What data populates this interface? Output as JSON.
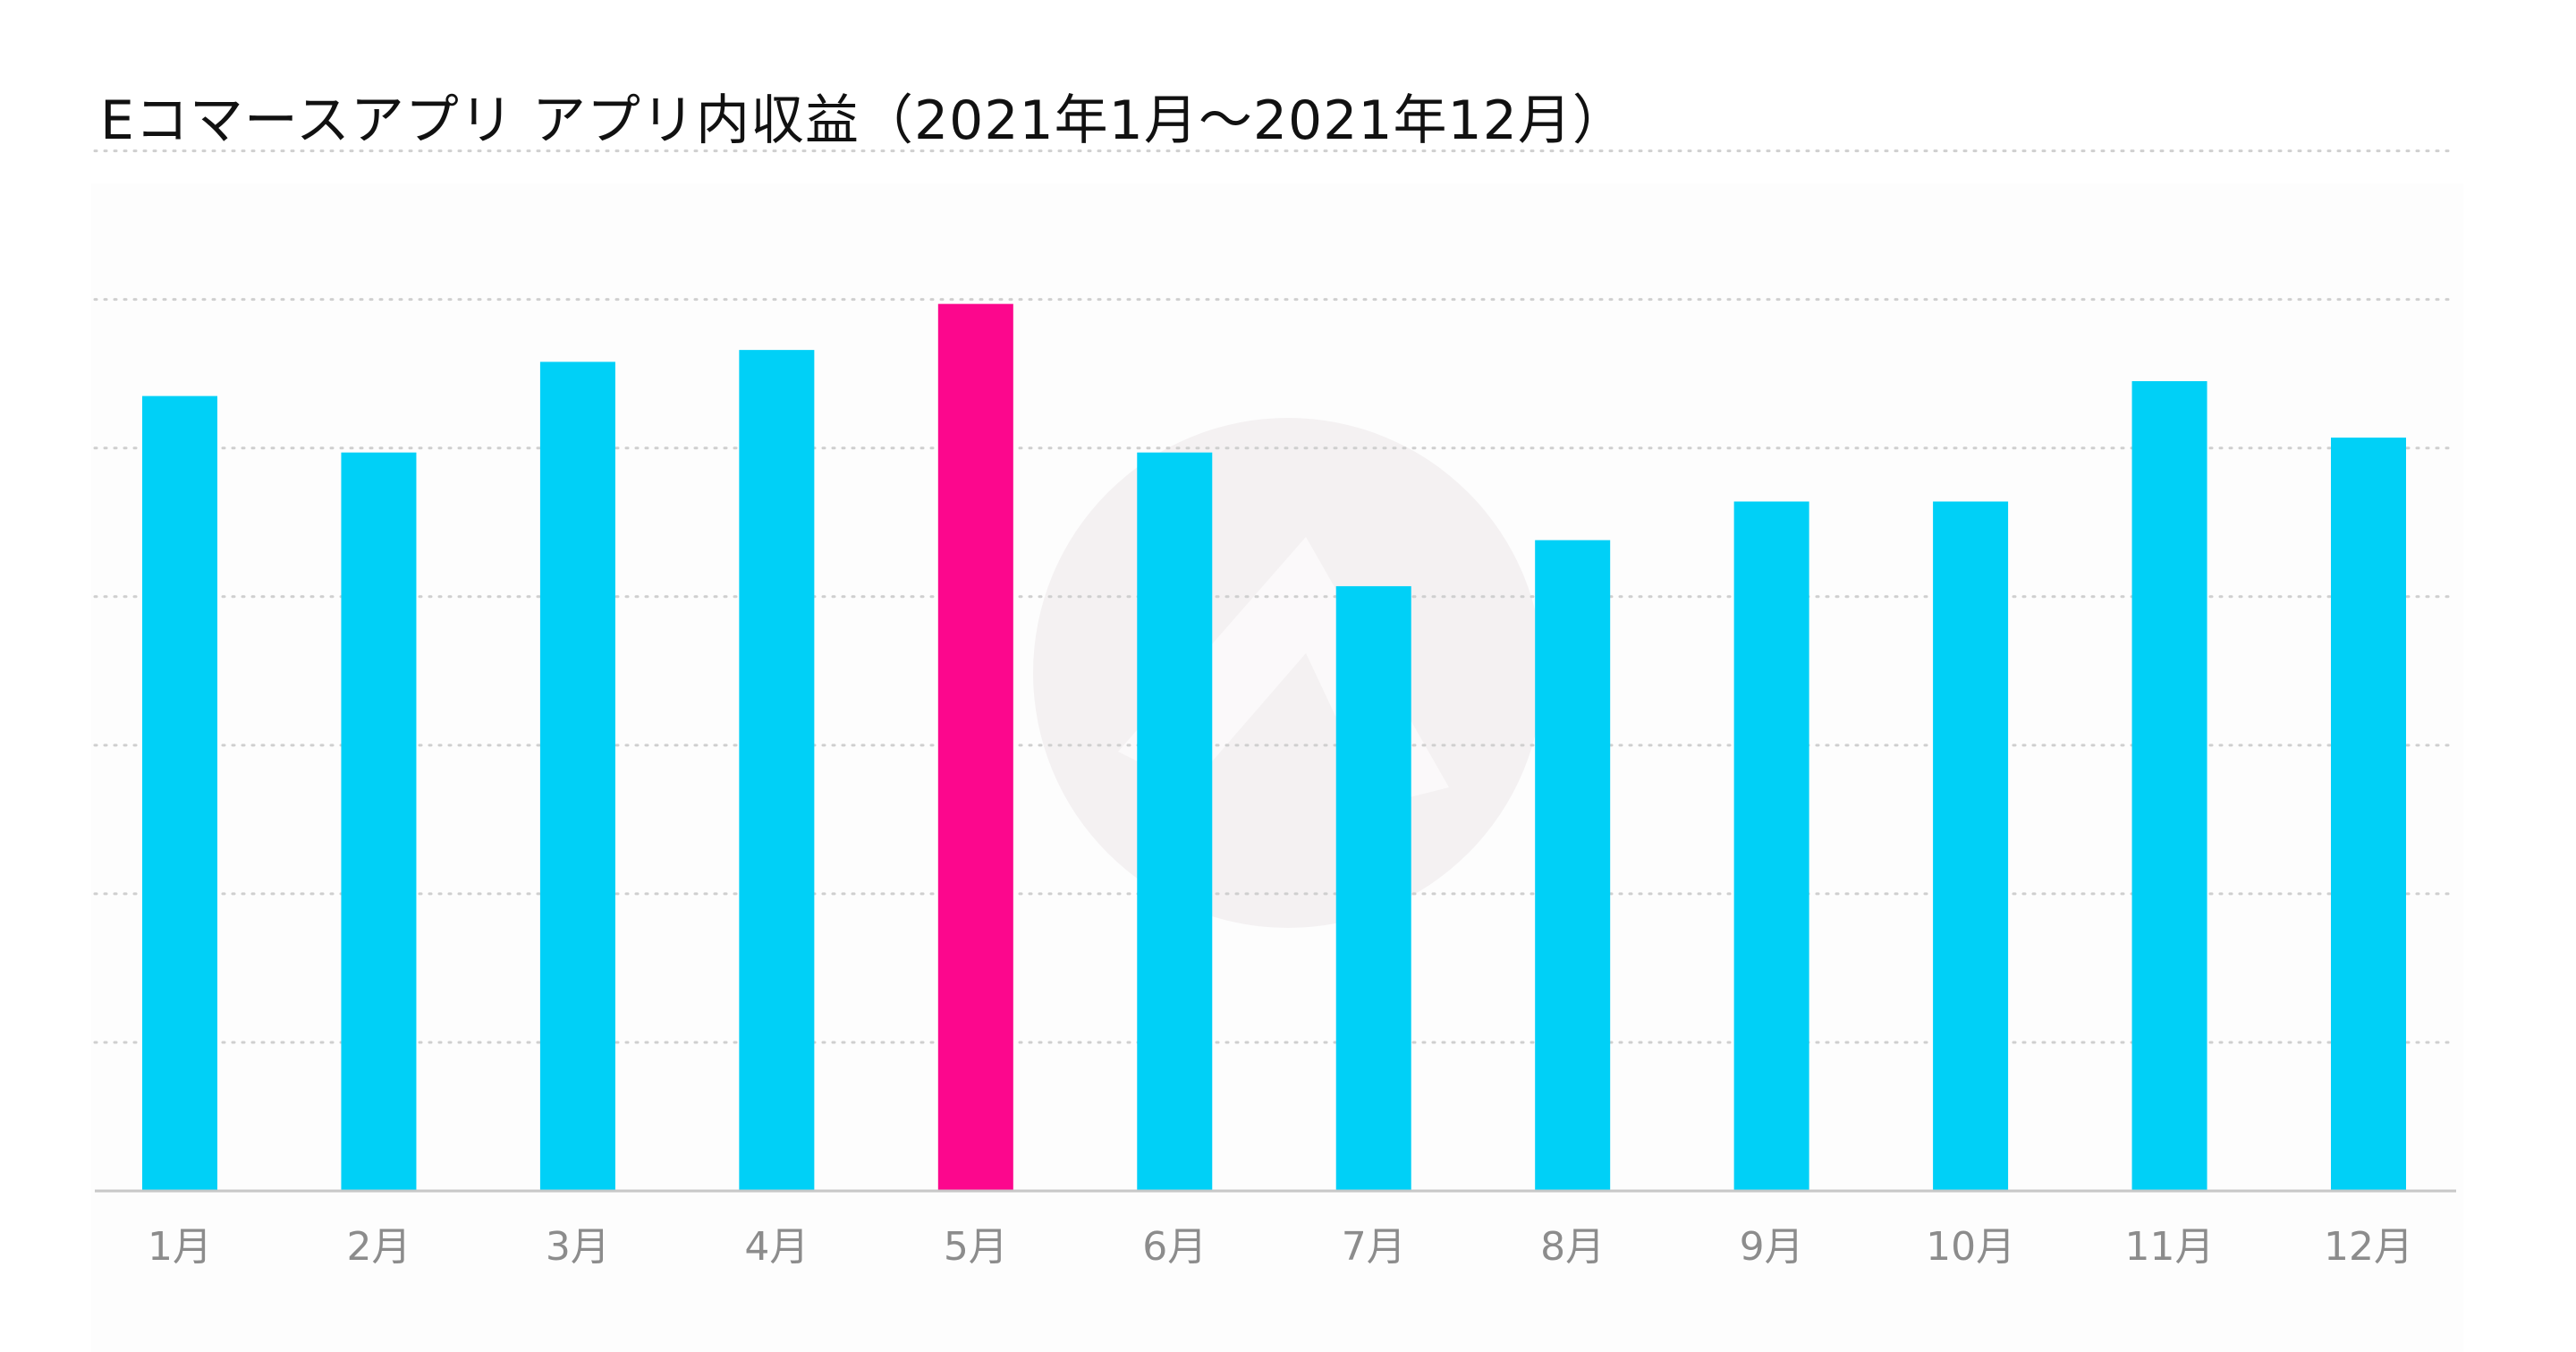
{
  "colors": {
    "bar": "#00d0f7",
    "highlight": "#fc078d",
    "grid": "#cfcfcf",
    "axis": "#c8c8c8",
    "watermark": "#ece8e9"
  },
  "chart_data": {
    "type": "bar",
    "title": "Eコマースアプリ アプリ内収益（2021年1月〜2021年12月）",
    "xlabel": "",
    "ylabel": "",
    "categories": [
      "1月",
      "2月",
      "3月",
      "4月",
      "5月",
      "6月",
      "7月",
      "8月",
      "9月",
      "10月",
      "11月",
      "12月"
    ],
    "values": [
      5.35,
      4.97,
      5.58,
      5.66,
      5.97,
      4.97,
      4.07,
      4.38,
      4.64,
      4.64,
      5.45,
      5.07
    ],
    "highlight_index": 4,
    "ylim": [
      0,
      7.1
    ],
    "gridlines": [
      1,
      2,
      3,
      4,
      5,
      6,
      7
    ],
    "y_tick_labels_shown": false,
    "grid": true,
    "legend": "none"
  }
}
